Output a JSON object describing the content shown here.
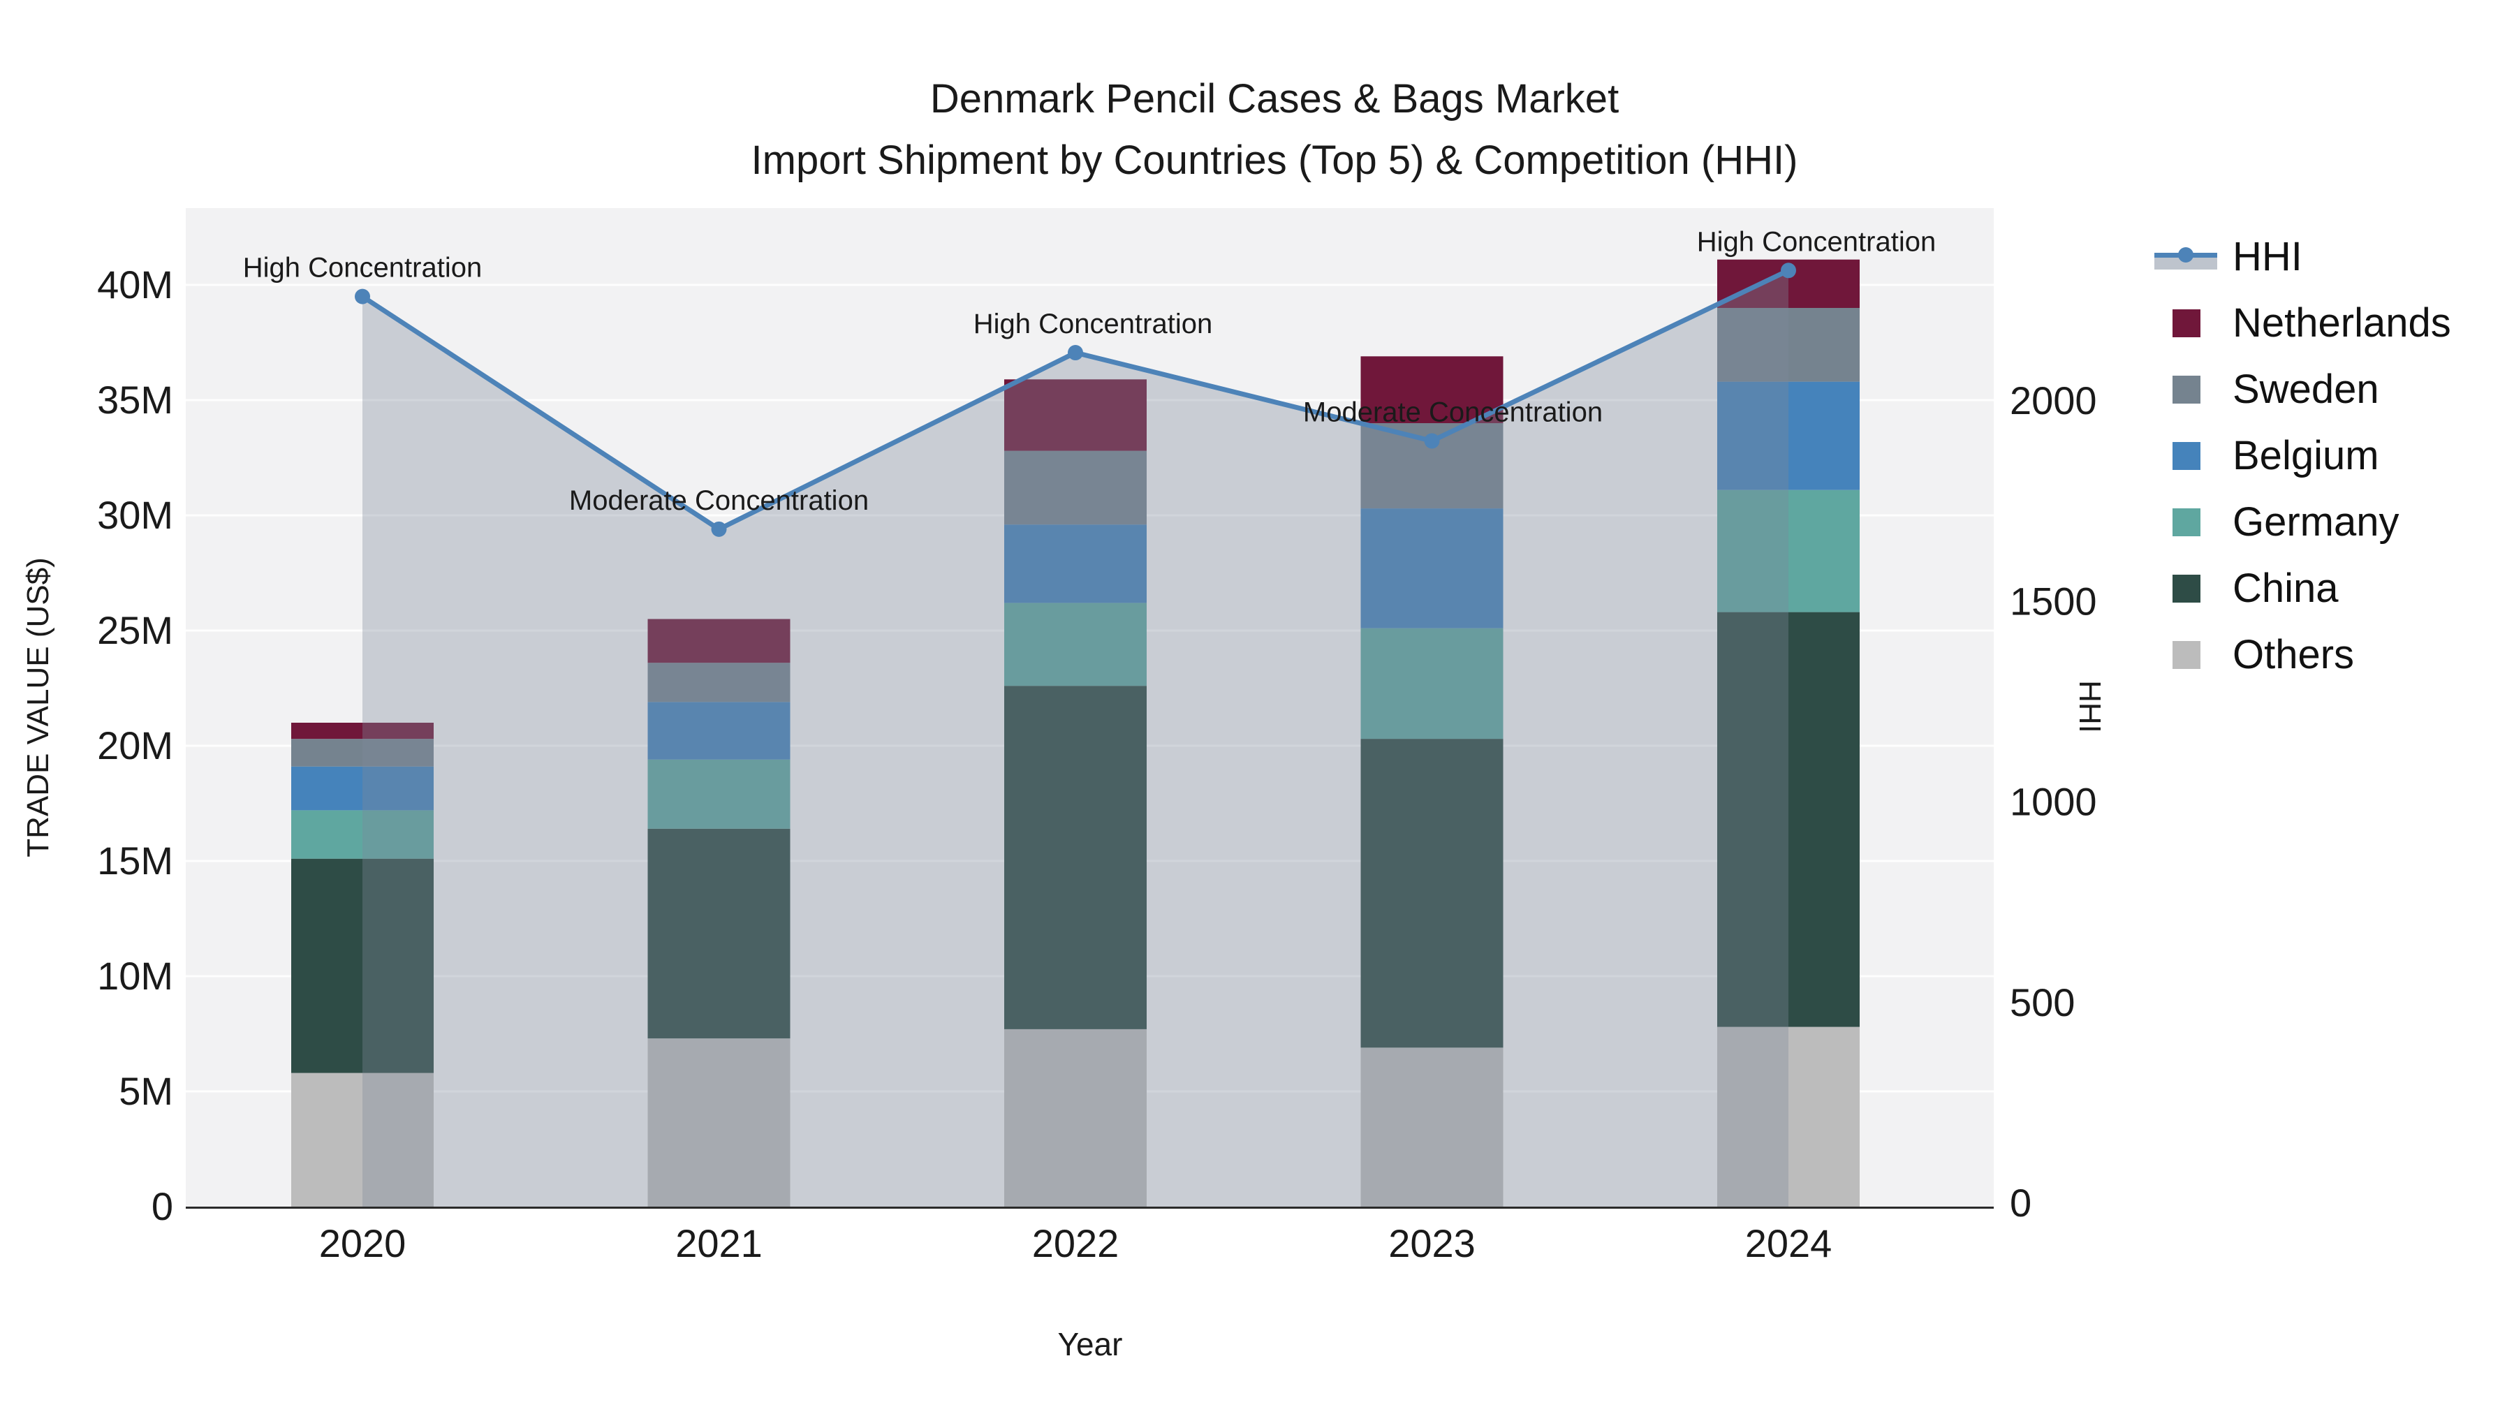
{
  "title_line1": "Denmark Pencil Cases & Bags Market",
  "title_line2": "Import Shipment by Countries (Top 5) & Competition (HHI)",
  "chart_data": {
    "type": "combo-stacked-bar-line-area",
    "categories": [
      "2020",
      "2021",
      "2022",
      "2023",
      "2024"
    ],
    "xlabel": "Year",
    "ylabel_left": "TRADE VALUE (US$)",
    "ylabel_right": "HHI",
    "y_left_tick_labels": [
      "0",
      "5M",
      "10M",
      "15M",
      "20M",
      "25M",
      "30M",
      "35M",
      "40M"
    ],
    "y_left_tick_values_musd": [
      0,
      5,
      10,
      15,
      20,
      25,
      30,
      35,
      40
    ],
    "y_left_range_musd": [
      0,
      43.3
    ],
    "y_right_tick_labels": [
      "0",
      "500",
      "1000",
      "1500",
      "2000"
    ],
    "y_right_tick_values": [
      0,
      500,
      1000,
      1500,
      2000
    ],
    "y_right_range": [
      0,
      2480
    ],
    "grid": true,
    "legend_position": "right",
    "legend_entries": [
      "HHI",
      "Netherlands",
      "Sweden",
      "Belgium",
      "Germany",
      "China",
      "Others"
    ],
    "stack_order_bottom_to_top": [
      "Others",
      "China",
      "Germany",
      "Belgium",
      "Sweden",
      "Netherlands"
    ],
    "series": [
      {
        "name": "Netherlands",
        "color": "#70173a",
        "values_musd": [
          0.7,
          1.9,
          3.1,
          2.9,
          2.1
        ]
      },
      {
        "name": "Sweden",
        "color": "#75838f",
        "values_musd": [
          1.2,
          1.7,
          3.2,
          3.7,
          3.2
        ]
      },
      {
        "name": "Belgium",
        "color": "#4583bb",
        "values_musd": [
          1.9,
          2.5,
          3.4,
          5.2,
          4.7
        ]
      },
      {
        "name": "Germany",
        "color": "#5fa7a0",
        "values_musd": [
          2.1,
          3.0,
          3.6,
          4.8,
          5.3
        ]
      },
      {
        "name": "China",
        "color": "#2e4c46",
        "values_musd": [
          9.3,
          9.1,
          14.9,
          13.4,
          18.0
        ]
      },
      {
        "name": "Others",
        "color": "#bcbcbc",
        "values_musd": [
          5.8,
          7.3,
          7.7,
          6.9,
          7.8
        ]
      }
    ],
    "bar_totals_musd": [
      21.0,
      25.5,
      35.9,
      36.9,
      41.1
    ],
    "hhi": {
      "name": "HHI",
      "line_color": "#4d83b8",
      "fill_color": "#7d8a9b",
      "fill_opacity": 0.35,
      "values": [
        2260,
        1680,
        2120,
        1900,
        2325
      ],
      "annotations": [
        "High Concentration",
        "Moderate Concentration",
        "High Concentration",
        "Moderate Concentration",
        "High Concentration"
      ]
    },
    "plot_bg_color": "#f2f2f3",
    "grid_color": "#ffffff",
    "axis_line_color": "#2a2a2a",
    "text_color": "#1a1a1a"
  }
}
